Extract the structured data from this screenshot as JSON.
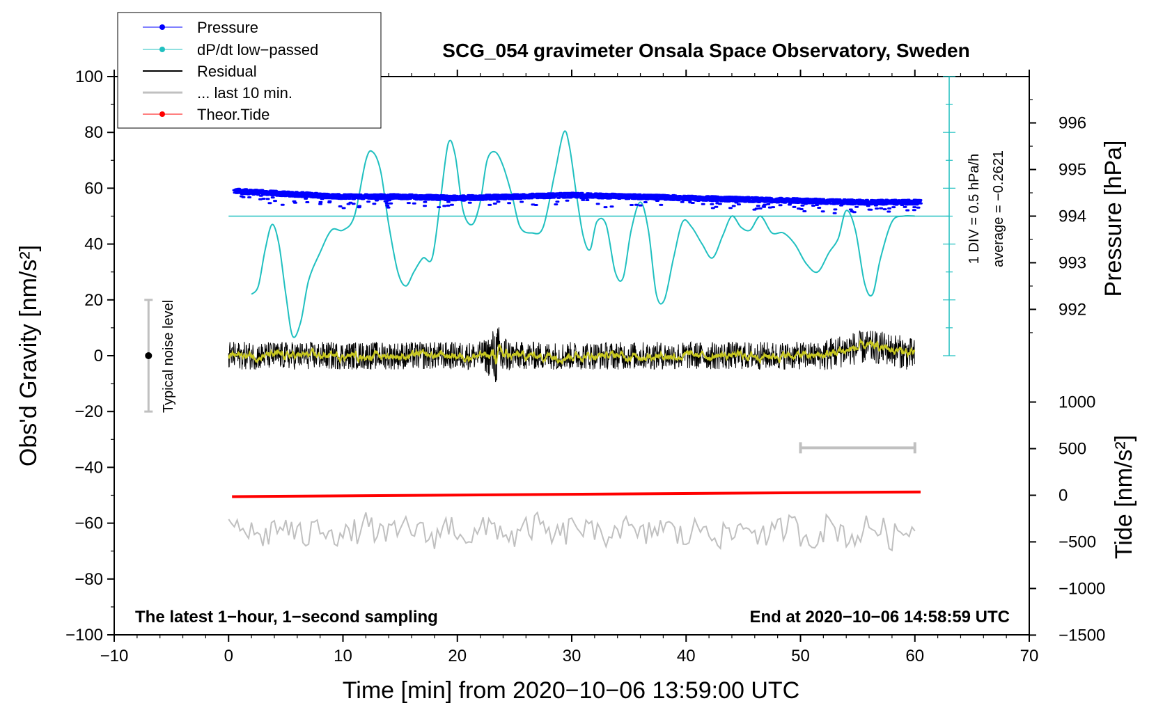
{
  "chart_data": {
    "type": "line",
    "title": "SCG_054 gravimeter Onsala Space Observatory, Sweden",
    "xlabel": "Time [min] from 2020−10−06 13:59:00 UTC",
    "ylabel": "Obs'd Gravity [nm/s²]",
    "y2label": "Pressure [hPa]",
    "y3label": "Tide [nm/s²]",
    "xlim": [
      -10,
      70
    ],
    "ylim": [
      -100,
      100
    ],
    "x_ticks": [
      "−10",
      "0",
      "10",
      "20",
      "30",
      "40",
      "50",
      "60",
      "70"
    ],
    "y_ticks": [
      "100",
      "80",
      "60",
      "40",
      "20",
      "0",
      "−20",
      "−40",
      "−60",
      "−80",
      "−100"
    ],
    "pressure_ticks": [
      "996",
      "995",
      "994",
      "993",
      "992"
    ],
    "tide_ticks": [
      "1000",
      "500",
      "0",
      "−500",
      "−1000",
      "−1500"
    ],
    "legend": [
      "Pressure",
      "dP/dt low−passed",
      "Residual",
      "... last 10 min.",
      "Theor.Tide"
    ],
    "legend_position": "top-left",
    "annotations": {
      "bottom_left": "The latest 1−hour, 1−second sampling",
      "bottom_right": "End at 2020−10−06 14:58:59 UTC",
      "noise_label": "Typical noise level",
      "div_label": "1 DIV = 0.5 hPa/h",
      "average_label": "average = −0.2621"
    },
    "noise_bar": {
      "x": -7,
      "center": 0,
      "range": [
        -20,
        20
      ]
    },
    "last10_bar": {
      "x_range": [
        50,
        60
      ],
      "y": -33
    },
    "dpdt_zero_line": 50,
    "series": [
      {
        "name": "Pressure",
        "color": "#0000ff",
        "x": [
          0.5,
          5,
          10,
          15,
          20,
          25,
          30,
          35,
          40,
          45,
          50,
          55,
          60.5
        ],
        "values": [
          59,
          58,
          57,
          57,
          56.5,
          57,
          57.5,
          57,
          56.5,
          56,
          55.5,
          55,
          55
        ]
      },
      {
        "name": "dP/dt low−passed",
        "color": "#20c0c0",
        "x": [
          2,
          2.6,
          3.2,
          3.8,
          4.4,
          5,
          5.6,
          6.3,
          7,
          8,
          9,
          10,
          11,
          12,
          12.6,
          13.3,
          14,
          14.8,
          15.5,
          16.2,
          17,
          17.8,
          18.5,
          19.2,
          19.8,
          20.5,
          21.3,
          22,
          22.6,
          23.3,
          24,
          24.8,
          25.5,
          26.5,
          27.5,
          28.5,
          29.3,
          29.8,
          30.4,
          31,
          31.6,
          32.2,
          33,
          33.8,
          34.5,
          35.2,
          36,
          36.7,
          37.4,
          38.1,
          38.9,
          39.7,
          40.5,
          41.4,
          42.3,
          43.2,
          44,
          44.8,
          45.6,
          46.5,
          47.5,
          48.5,
          49.5,
          50.5,
          51.5,
          52.5,
          53.3,
          54,
          54.8,
          55.6,
          56.3,
          57,
          58,
          59,
          60
        ],
        "values": [
          22,
          25,
          38,
          47,
          40,
          22,
          7,
          12,
          27,
          37,
          45,
          45,
          50,
          70,
          73,
          66,
          47,
          30,
          25,
          30,
          35,
          35,
          55,
          76,
          72,
          52,
          47,
          55,
          70,
          73,
          68,
          57,
          46,
          44,
          46,
          65,
          80,
          75,
          58,
          43,
          38,
          48,
          47,
          30,
          28,
          45,
          55,
          45,
          22,
          20,
          35,
          48,
          46,
          40,
          35,
          43,
          50,
          46,
          45,
          50,
          44,
          44,
          40,
          33,
          30,
          37,
          42,
          52,
          45,
          26,
          22,
          35,
          48,
          50,
          50
        ]
      },
      {
        "name": "Residual",
        "color": "#000000",
        "x": [
          0,
          60
        ],
        "values": [
          0,
          0
        ]
      },
      {
        "name": "... last 10 min.",
        "color": "#c0c0c0",
        "x": [
          0,
          60
        ],
        "values": [
          -63,
          -63
        ]
      },
      {
        "name": "Theor.Tide",
        "color": "#ff0000",
        "x": [
          0.3,
          60.5
        ],
        "values": [
          -50.5,
          -48.8
        ]
      }
    ]
  }
}
